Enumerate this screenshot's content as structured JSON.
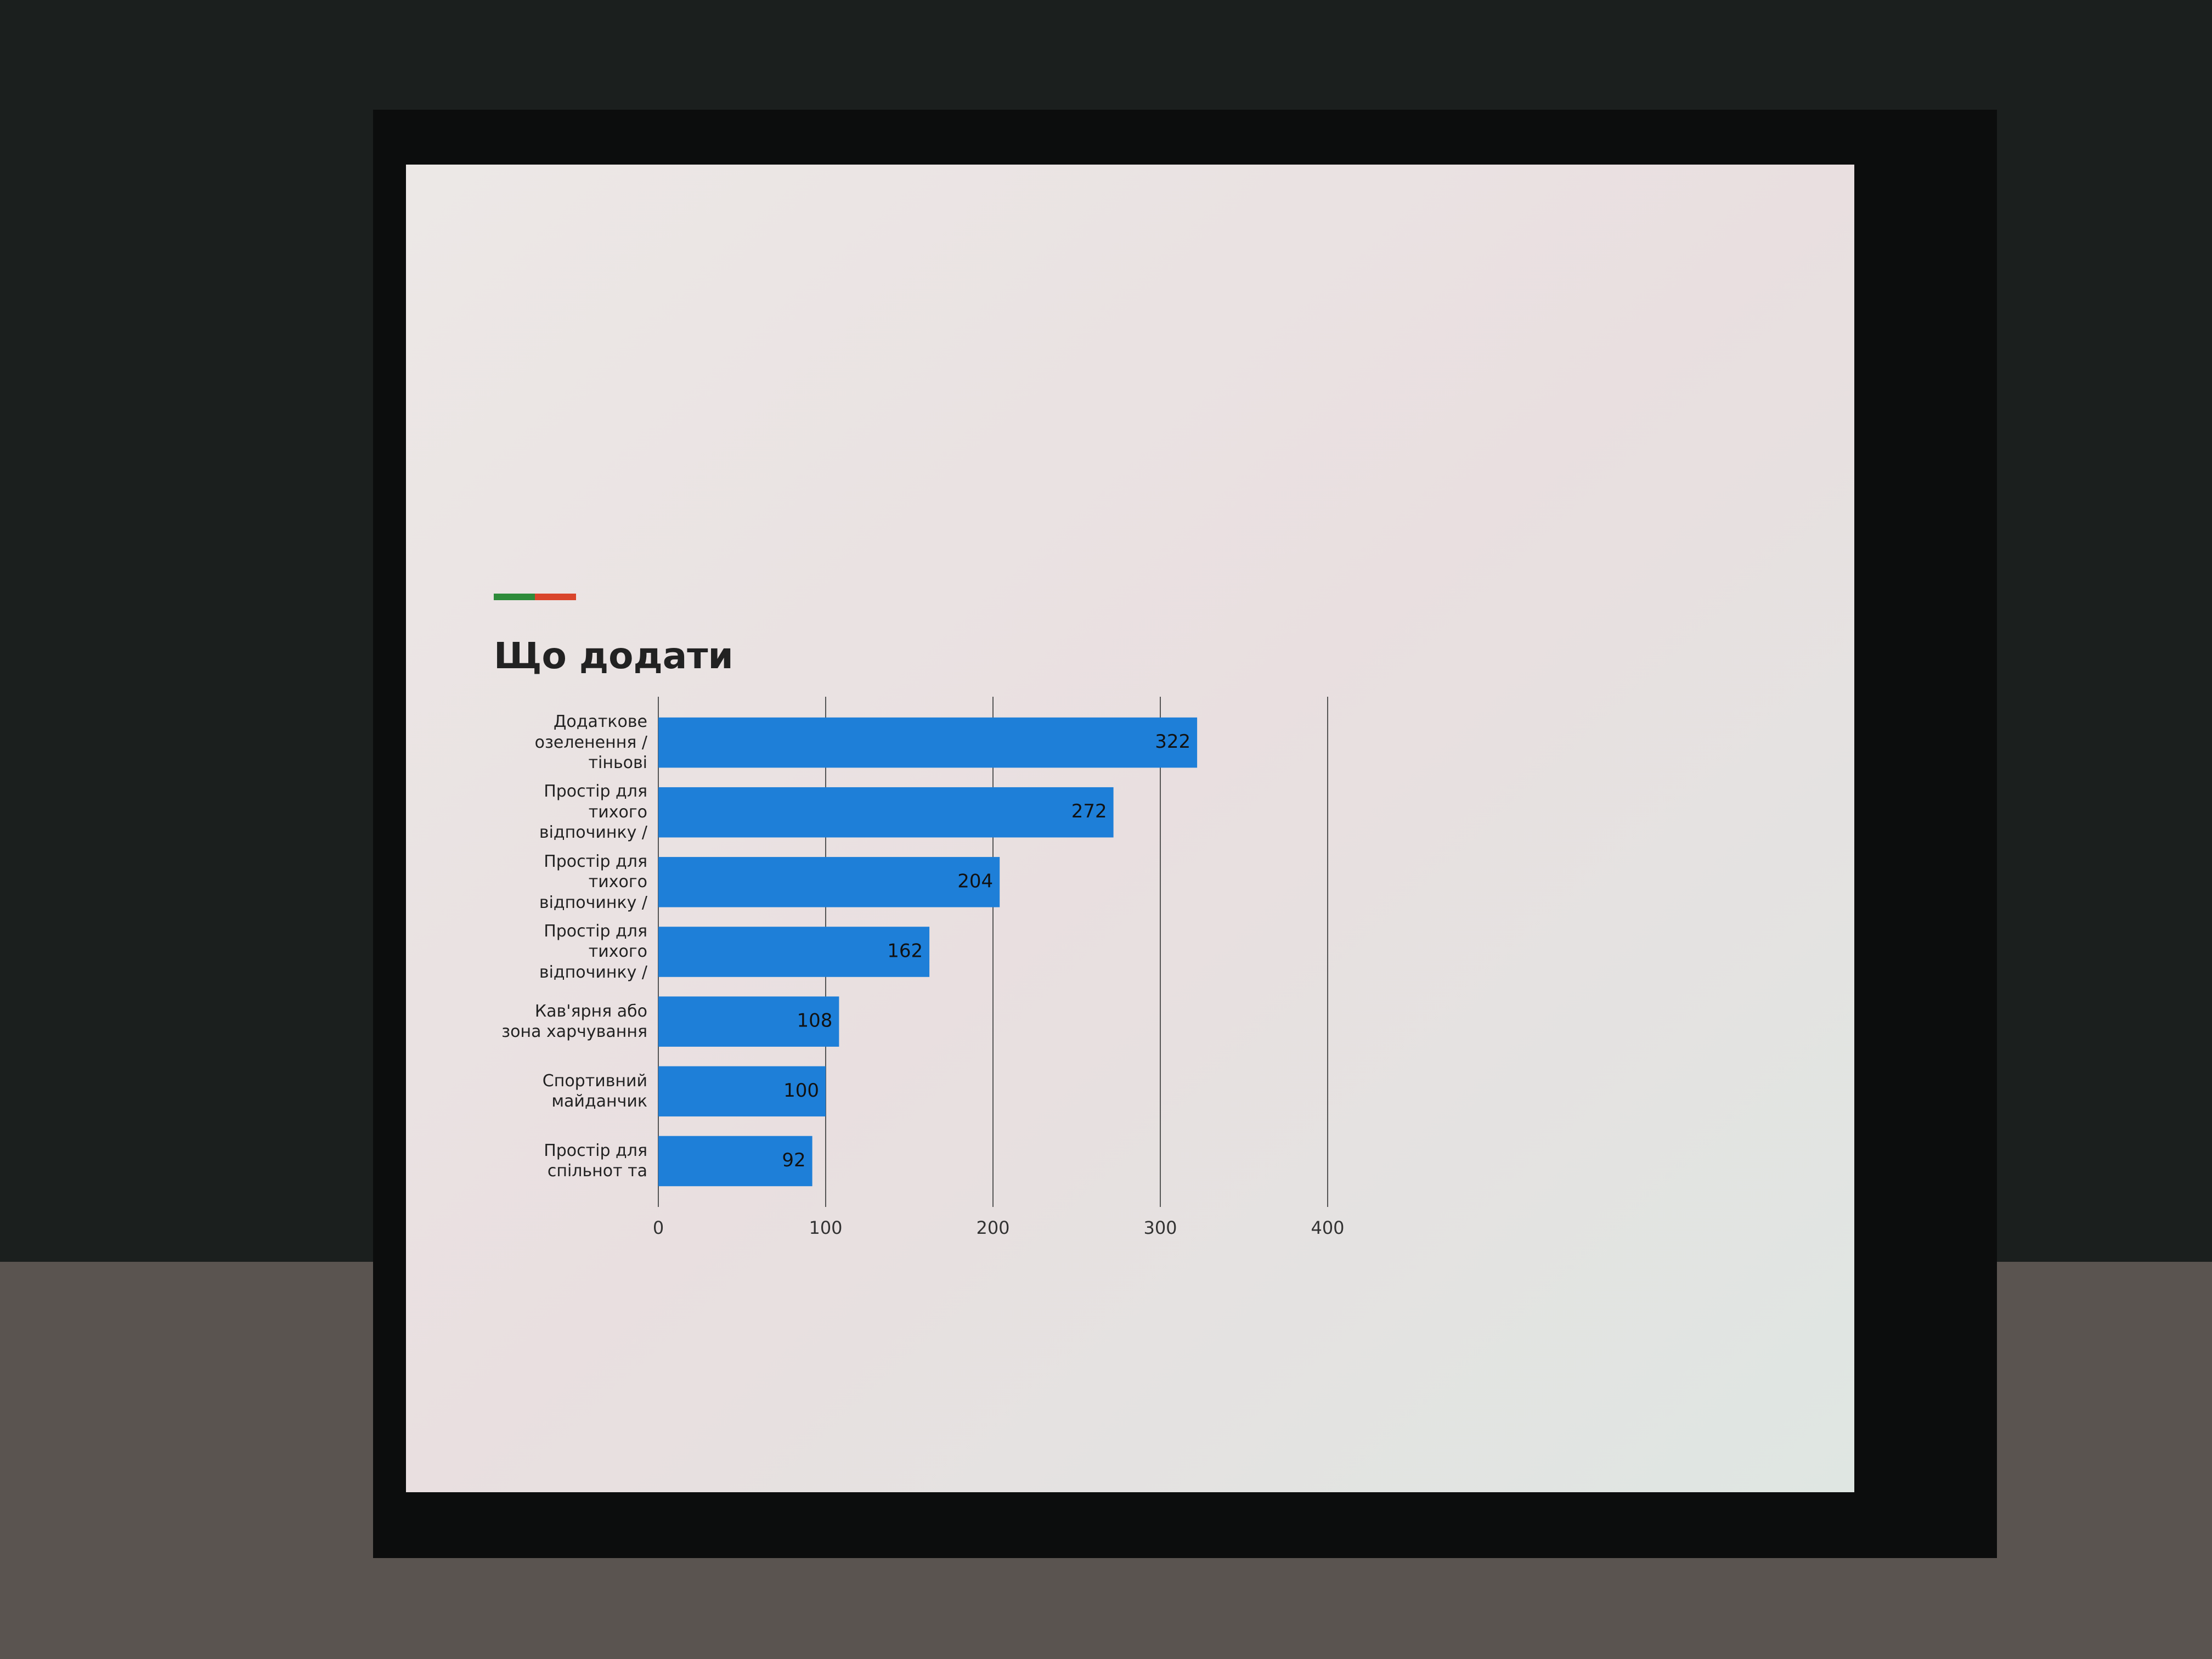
{
  "chart_data": {
    "type": "bar",
    "orientation": "horizontal",
    "title": "Що додати",
    "categories": [
      "Додаткове озеленення / тіньові",
      "Простір для тихого відпочинку /",
      "Простір для тихого відпочинку /",
      "Простір для тихого відпочинку /",
      "Кав'ярня або зона харчування",
      "Спортивний майданчик",
      "Простір для спільнот та"
    ],
    "values": [
      322,
      272,
      204,
      162,
      108,
      100,
      92
    ],
    "color": "#1e7fd8",
    "xlim": [
      0,
      400
    ],
    "xticks": [
      0,
      100,
      200,
      300,
      400
    ],
    "grid": true
  }
}
